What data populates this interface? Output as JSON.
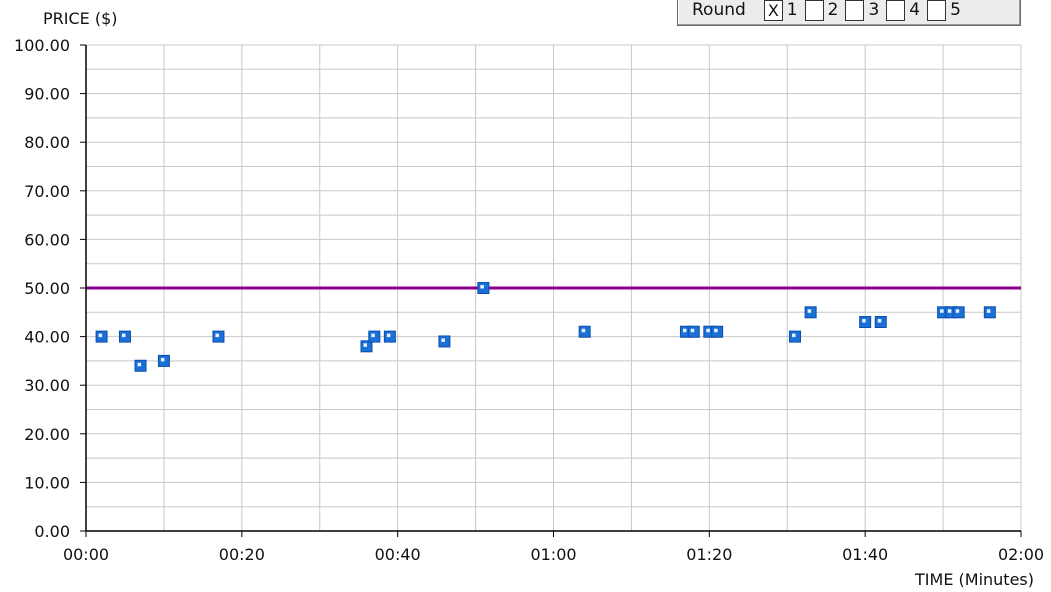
{
  "round_selector": {
    "label": "Round",
    "options": [
      {
        "label": "1",
        "checked": true,
        "mark": "X"
      },
      {
        "label": "2",
        "checked": false,
        "mark": ""
      },
      {
        "label": "3",
        "checked": false,
        "mark": ""
      },
      {
        "label": "4",
        "checked": false,
        "mark": ""
      },
      {
        "label": "5",
        "checked": false,
        "mark": ""
      }
    ]
  },
  "chart_data": {
    "type": "scatter",
    "ylabel": "PRICE ($)",
    "xlabel": "TIME (Minutes)",
    "ylim": [
      0,
      100
    ],
    "xlim": [
      0,
      120
    ],
    "y_ticks": [
      "0.00",
      "10.00",
      "20.00",
      "30.00",
      "40.00",
      "50.00",
      "60.00",
      "70.00",
      "80.00",
      "90.00",
      "100.00"
    ],
    "x_ticks": [
      "00:00",
      "00:20",
      "00:40",
      "01:00",
      "01:20",
      "01:40",
      "02:00"
    ],
    "grid": true,
    "reference_line": {
      "y": 50,
      "color": "#8b008b"
    },
    "marker_color": "#1a6fd8",
    "points": [
      {
        "x": 2,
        "y": 40
      },
      {
        "x": 5,
        "y": 40
      },
      {
        "x": 7,
        "y": 34
      },
      {
        "x": 10,
        "y": 35
      },
      {
        "x": 17,
        "y": 40
      },
      {
        "x": 36,
        "y": 38
      },
      {
        "x": 37,
        "y": 40
      },
      {
        "x": 39,
        "y": 40
      },
      {
        "x": 46,
        "y": 39
      },
      {
        "x": 51,
        "y": 50
      },
      {
        "x": 64,
        "y": 41
      },
      {
        "x": 77,
        "y": 41
      },
      {
        "x": 78,
        "y": 41
      },
      {
        "x": 80,
        "y": 41
      },
      {
        "x": 81,
        "y": 41
      },
      {
        "x": 91,
        "y": 40
      },
      {
        "x": 93,
        "y": 45
      },
      {
        "x": 100,
        "y": 43
      },
      {
        "x": 102,
        "y": 43
      },
      {
        "x": 110,
        "y": 45
      },
      {
        "x": 111,
        "y": 45
      },
      {
        "x": 112,
        "y": 45
      },
      {
        "x": 116,
        "y": 45
      }
    ]
  }
}
